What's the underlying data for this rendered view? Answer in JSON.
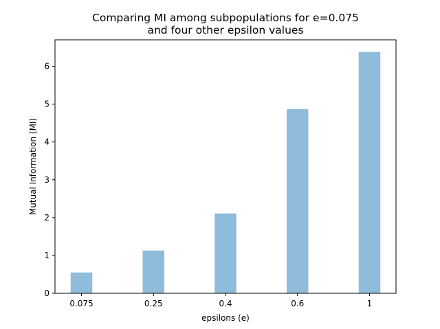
{
  "chart_data": {
    "type": "bar",
    "title": "Comparing MI among subpopulations for e=0.075\nand four other epsilon values",
    "title_lines": [
      "Comparing MI among subpopulations for e=0.075",
      "and four other epsilon values"
    ],
    "xlabel": "epsilons (e)",
    "ylabel": "Mutual Information (MI)",
    "categories": [
      "0.075",
      "0.25",
      "0.4",
      "0.6",
      "1"
    ],
    "values": [
      0.55,
      1.13,
      2.11,
      4.87,
      6.38
    ],
    "ylim": [
      0,
      6.7
    ],
    "yticks": [
      0,
      1,
      2,
      3,
      4,
      5,
      6
    ],
    "bar_color": "#8fbcdb",
    "grid": false,
    "legend": "none"
  }
}
